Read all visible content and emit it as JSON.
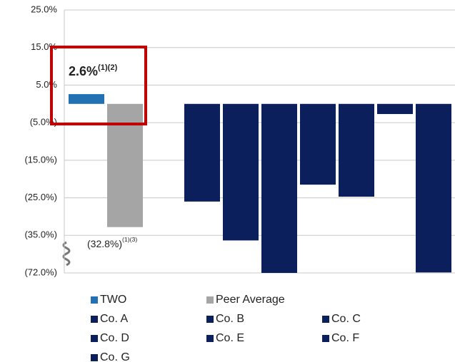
{
  "chart_data": {
    "type": "bar",
    "series": [
      {
        "name": "TWO",
        "color": "#2271b3",
        "values": [
          2.6
        ],
        "value_labels": [
          "2.6%"
        ],
        "label_notes": [
          "(1)(2)"
        ]
      },
      {
        "name": "Peer Average",
        "color": "#a5a5a5",
        "values": [
          -32.8
        ],
        "value_labels": [
          "(32.8%)"
        ],
        "label_notes": [
          "(1)(3)"
        ]
      },
      {
        "name": "Co. A",
        "color": "#0b1f5c",
        "values": [
          -26
        ]
      },
      {
        "name": "Co. B",
        "color": "#0b1f5c",
        "values": [
          -40
        ]
      },
      {
        "name": "Co. C",
        "color": "#0b1f5c",
        "values": [
          -72
        ]
      },
      {
        "name": "Co. D",
        "color": "#0b1f5c",
        "values": [
          -21.5
        ]
      },
      {
        "name": "Co. E",
        "color": "#0b1f5c",
        "values": [
          -24.7
        ]
      },
      {
        "name": "Co. F",
        "color": "#0b1f5c",
        "values": [
          -2.7
        ]
      },
      {
        "name": "Co. G",
        "color": "#0b1f5c",
        "values": [
          -71.5
        ]
      }
    ],
    "ylim": [
      -72,
      25
    ],
    "yticks": [
      {
        "value": 25,
        "label": "25.0%"
      },
      {
        "value": 15,
        "label": "15.0%"
      },
      {
        "value": 5,
        "label": "5.0%"
      },
      {
        "value": -5,
        "label": "(5.0%)"
      },
      {
        "value": -15,
        "label": "(15.0%)"
      },
      {
        "value": -25,
        "label": "(25.0%)"
      },
      {
        "value": -35,
        "label": "(35.0%)"
      },
      {
        "value": -72,
        "label": "(72.0%)"
      }
    ],
    "grid": true
  }
}
